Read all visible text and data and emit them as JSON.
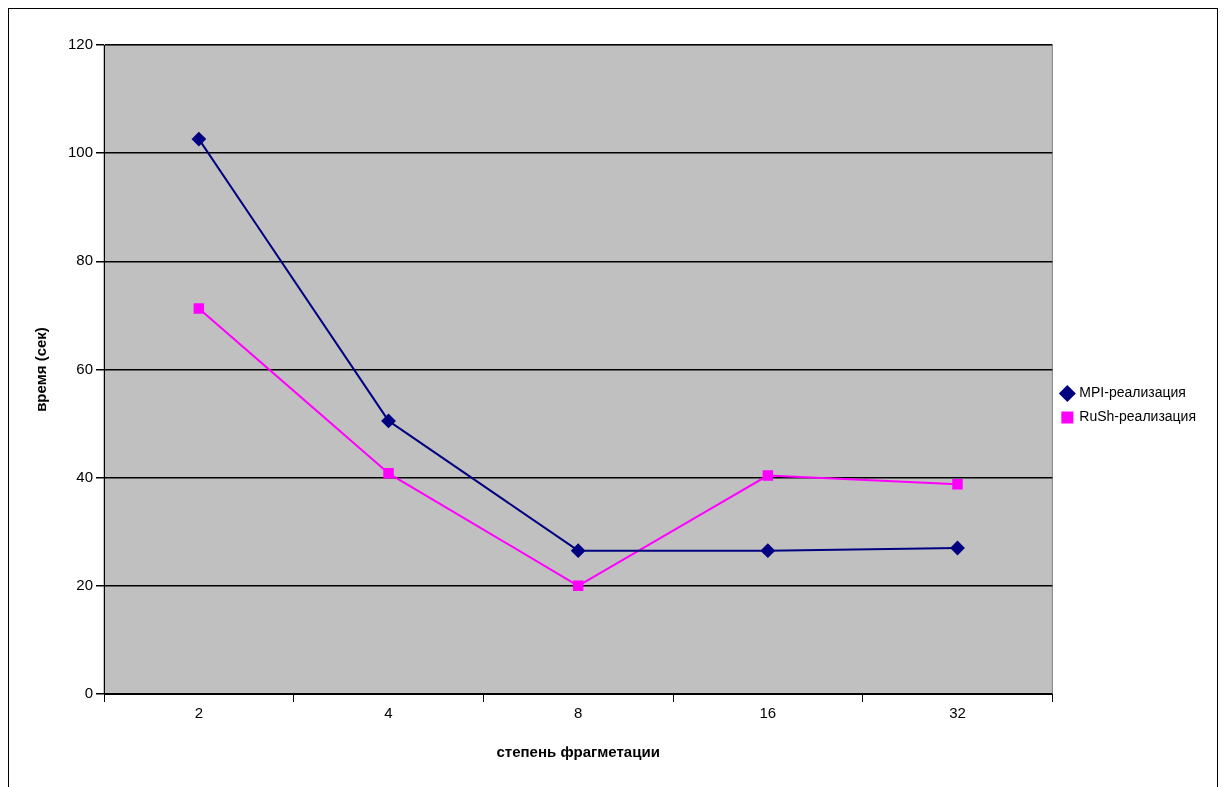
{
  "chart_data": {
    "type": "line",
    "xlabel": "степень фрагметации",
    "ylabel": "время (сек)",
    "categories": [
      "2",
      "4",
      "8",
      "16",
      "32"
    ],
    "series": [
      {
        "name": "MPI-реализация",
        "color": "#000080",
        "marker": "diamond",
        "values": [
          102.6,
          50.5,
          26.5,
          26.5,
          27
        ]
      },
      {
        "name": "RuSh-реализация",
        "color": "#ff00ff",
        "marker": "square",
        "values": [
          71.3,
          40.8,
          20,
          40.4,
          38.8
        ]
      }
    ],
    "ylim": [
      0,
      120
    ],
    "yticks": [
      0,
      20,
      40,
      60,
      80,
      100,
      120
    ],
    "grid": "y",
    "legend": "right",
    "line_style": "solid"
  }
}
